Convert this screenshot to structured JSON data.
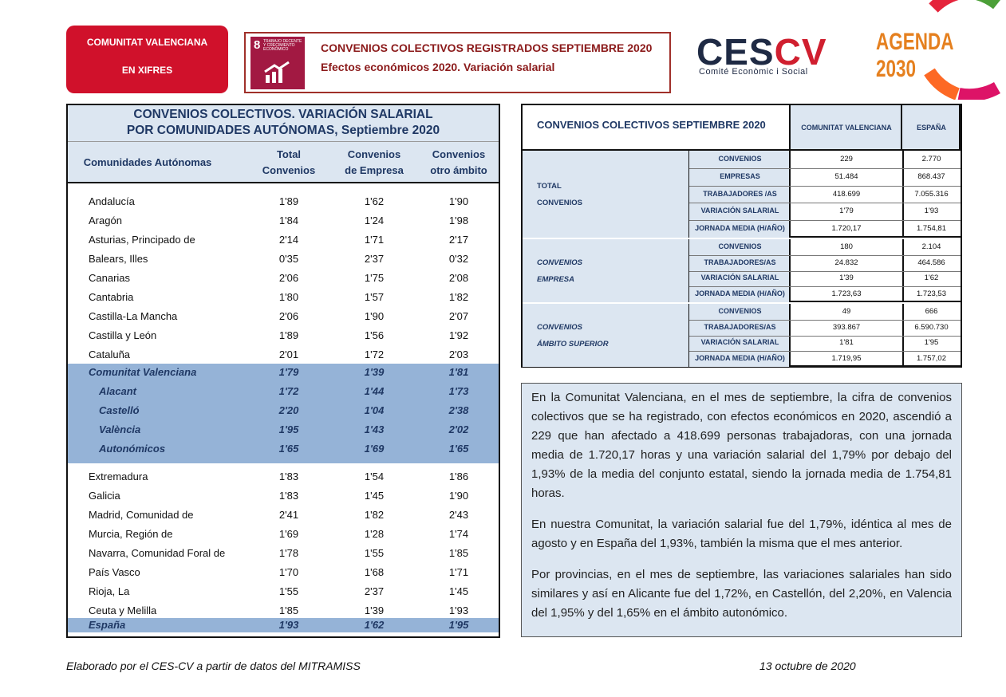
{
  "header": {
    "badge": [
      "COMUNITAT VALENCIANA",
      "EN XIFRES"
    ],
    "sdg_number": "8",
    "sdg_text": [
      "TRABAJO DECENTE",
      "Y CRECIMIENTO",
      "ECONÓMICO"
    ],
    "title": "CONVENIOS COLECTIVOS REGISTRADOS SEPTIEMBRE 2020",
    "subtitle": "Efectos económicos 2020. Variación salarial",
    "logo": [
      "CES",
      "CV"
    ],
    "logo_caption": "Comité Econòmic i Social",
    "agenda": "AGENDA 2030"
  },
  "left_table": {
    "title": [
      "CONVENIOS COLECTIVOS. VARIACIÓN SALARIAL",
      "POR COMUNIDADES AUTÓNOMAS, Septiembre 2020"
    ],
    "columns": [
      [
        "Comunidades Autónomas"
      ],
      [
        "Total",
        "Convenios"
      ],
      [
        "Convenios",
        "de Empresa"
      ],
      [
        "Convenios",
        "otro ámbito"
      ]
    ],
    "sections": [
      [
        [
          "Andalucía",
          "1'89",
          "1'62",
          "1'90"
        ],
        [
          "Aragón",
          "1'84",
          "1'24",
          "1'98"
        ],
        [
          "Asturias, Principado de",
          "2'14",
          "1'71",
          "2'17"
        ],
        [
          "Balears, Illes",
          "0'35",
          "2'37",
          "0'32"
        ],
        [
          "Canarias",
          "2'06",
          "1'75",
          "2'08"
        ],
        [
          "Cantabria",
          "1'80",
          "1'57",
          "1'82"
        ],
        [
          "Castilla-La Mancha",
          "2'06",
          "1'90",
          "2'07"
        ],
        [
          "Castilla y León",
          "1'89",
          "1'56",
          "1'92"
        ],
        [
          "Cataluña",
          "2'01",
          "1'72",
          "2'03"
        ]
      ],
      [
        [
          "Comunitat Valenciana",
          "1'79",
          "1'39",
          "1'81"
        ],
        [
          "Alacant",
          "1'72",
          "1'44",
          "1'73"
        ],
        [
          "Castelló",
          "2'20",
          "1'04",
          "2'38"
        ],
        [
          "València",
          "1'95",
          "1'43",
          "2'02"
        ],
        [
          "Autonómicos",
          "1'65",
          "1'69",
          "1'65"
        ]
      ],
      [
        [
          "Extremadura",
          "1'83",
          "1'54",
          "1'86"
        ],
        [
          "Galicia",
          "1'83",
          "1'45",
          "1'90"
        ],
        [
          "Madrid, Comunidad de",
          "2'41",
          "1'82",
          "2'43"
        ],
        [
          "Murcia, Región de",
          "1'69",
          "1'28",
          "1'74"
        ],
        [
          "Navarra, Comunidad Foral de",
          "1'78",
          "1'55",
          "1'85"
        ],
        [
          "País Vasco",
          "1'70",
          "1'68",
          "1'71"
        ],
        [
          "Rioja, La",
          "1'55",
          "2'37",
          "1'45"
        ],
        [
          "Ceuta y Melilla",
          "1'85",
          "1'39",
          "1'93"
        ]
      ],
      [
        [
          "España",
          "1'93",
          "1'62",
          "1'95"
        ]
      ]
    ]
  },
  "right_table": {
    "title": "CONVENIOS COLECTIVOS SEPTIEMBRE 2020",
    "columns": [
      "COMUNITAT VALENCIANA",
      "ESPAÑA"
    ],
    "groups": [
      {
        "label": [
          "TOTAL",
          "CONVENIOS"
        ],
        "items": [
          [
            "CONVENIOS",
            "229",
            "2.770"
          ],
          [
            "EMPRESAS",
            "51.484",
            "868.437"
          ],
          [
            "TRABAJADORES /AS",
            "418.699",
            "7.055.316"
          ],
          [
            "VARIACIÓN SALARIAL",
            "1'79",
            "1'93"
          ],
          [
            "JORNADA MEDIA (H/AÑO)",
            "1.720,17",
            "1.754,81"
          ]
        ]
      },
      {
        "label": [
          "CONVENIOS",
          "EMPRESA"
        ],
        "items": [
          [
            "CONVENIOS",
            "180",
            "2.104"
          ],
          [
            "TRABAJADORES/AS",
            "24.832",
            "464.586"
          ],
          [
            "VARIACIÓN SALARIAL",
            "1'39",
            "1'62"
          ],
          [
            "JORNADA MEDIA (H/AÑO)",
            "1.723,63",
            "1.723,53"
          ]
        ]
      },
      {
        "label": [
          "CONVENIOS",
          "ÁMBITO SUPERIOR"
        ],
        "items": [
          [
            "CONVENIOS",
            "49",
            "666"
          ],
          [
            "TRABAJADORES/AS",
            "393.867",
            "6.590.730"
          ],
          [
            "VARIACIÓN SALARIAL",
            "1'81",
            "1'95"
          ],
          [
            "JORNADA MEDIA (H/AÑO)",
            "1.719,95",
            "1.757,02"
          ]
        ]
      }
    ]
  },
  "text": [
    "En la Comunitat Valenciana, en el mes de septiembre, la cifra de convenios colectivos que se ha registrado, con efectos económicos en 2020, ascendió a 229 que han afectado a 418.699 personas trabajadoras, con una jornada media de 1.720,17 horas y una variación salarial del 1,79% por debajo del 1,93% de la media del conjunto estatal, siendo la jornada media de 1.754,81 horas.",
    "En nuestra Comunitat, la variación salarial fue del 1,79%, idéntica al mes de agosto y en España del 1,93%, también la misma que el mes anterior.",
    "Por provincias, en el mes de septiembre, las variaciones salariales han sido similares y así en Alicante fue del 1,72%, en Castellón, del 2,20%, en Valencia del 1,95% y del 1,65% en el ámbito autonómico."
  ],
  "footer": {
    "source": "Elaborado por el CES-CV a partir de datos del MITRAMISS",
    "date": "13 octubre de 2020"
  }
}
